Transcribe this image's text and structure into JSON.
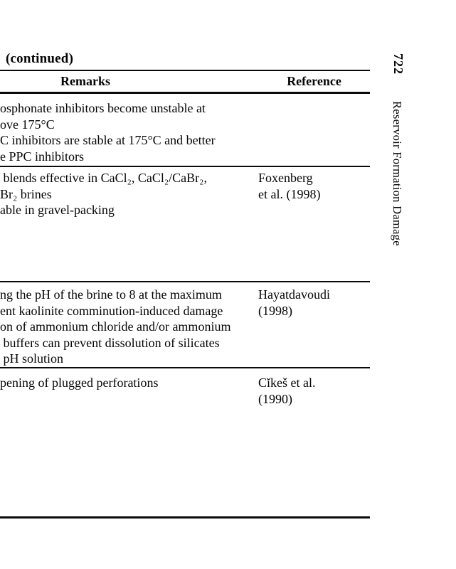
{
  "page": {
    "continued_label": "(continued)",
    "page_number": "722",
    "running_title": "Reservoir Formation Damage"
  },
  "table": {
    "headers": {
      "remarks": "Remarks",
      "reference": "Reference"
    },
    "rows": [
      {
        "remarks": "osphonate inhibitors become unstable at\nove 175°C\nC inhibitors are stable at 175°C and better\ne PPC inhibitors",
        "reference": ""
      },
      {
        "remarks": " blends effective in CaCl₂, CaCl₂/CaBr₂,\nBr₂ brines\nable in gravel-packing",
        "reference": "Foxenberg\net al. (1998)"
      },
      {
        "remarks": "ng the pH of the brine to 8 at the maximum\nent kaolinite comminution-induced damage\non of ammonium chloride and/or ammonium\n buffers can prevent dissolution of silicates\n pH solution",
        "reference": "Hayatdavoudi\n(1998)"
      },
      {
        "remarks": "pening of plugged perforations",
        "reference": "Cǐkeš et al.\n(1990)"
      }
    ]
  }
}
